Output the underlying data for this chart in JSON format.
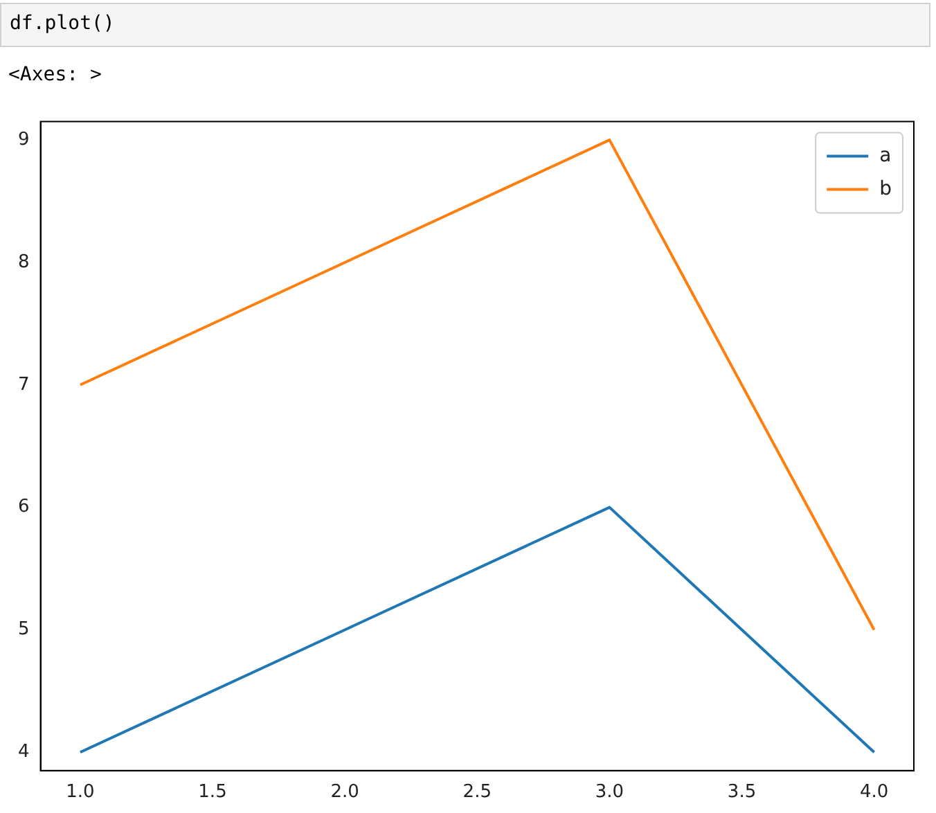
{
  "chart_data": {
    "type": "line",
    "annotations": [
      "df.plot()",
      "<Axes: >"
    ],
    "x": [
      1,
      2,
      3,
      4
    ],
    "series": [
      {
        "name": "a",
        "color": "#1f77b4",
        "values": [
          4,
          5,
          6,
          4
        ]
      },
      {
        "name": "b",
        "color": "#ff7f0e",
        "values": [
          7,
          8,
          9,
          5
        ]
      }
    ],
    "xlim": [
      0.85,
      4.15
    ],
    "xticks": [
      {
        "value": 1,
        "label": "1.0"
      },
      {
        "value": 1.5,
        "label": "1.5"
      },
      {
        "value": 2,
        "label": "2.0"
      },
      {
        "value": 2.5,
        "label": "2.5"
      },
      {
        "value": 3,
        "label": "3.0"
      },
      {
        "value": 3.5,
        "label": "3.5"
      },
      {
        "value": 4,
        "label": "4.0"
      }
    ],
    "ylim": [
      3.85,
      9.15
    ],
    "yticks": [
      4,
      5,
      6,
      7,
      8,
      9
    ],
    "grid": false,
    "legend": "top right",
    "marker": "none",
    "line_style": "solid"
  }
}
